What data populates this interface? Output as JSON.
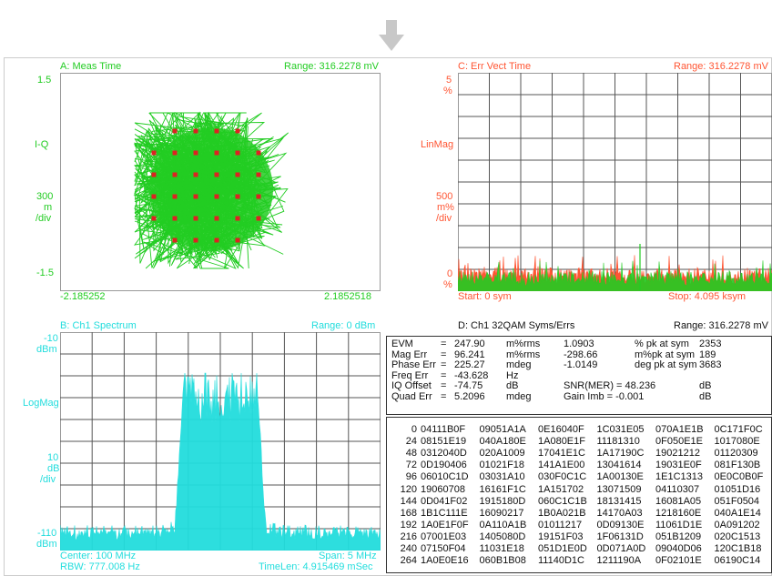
{
  "colors": {
    "green": "#22cc22",
    "red": "#ff5533",
    "cyan": "#22dddd",
    "trace_red": "#ff6a3a"
  },
  "panel_a": {
    "title": "A: Meas Time",
    "range": "Range: 316.2278 mV",
    "y_top": "1.5",
    "y_mid_label": "I-Q",
    "scale": [
      "300",
      "m",
      "/div"
    ],
    "y_bottom": "-1.5",
    "x_left": "-2.185252",
    "x_right": "2.1852518"
  },
  "panel_c": {
    "title": "C: Err Vect Time",
    "range": "Range: 316.2278 mV",
    "y_top": [
      "5",
      "%"
    ],
    "y_mid_label": "LinMag",
    "scale": [
      "500",
      "m%",
      "/div"
    ],
    "y_bottom": [
      "0",
      "%"
    ],
    "x_left": "Start: 0  sym",
    "x_right": "Stop: 4.095 ksym"
  },
  "panel_b": {
    "title": "B: Ch1 Spectrum",
    "range": "Range: 0 dBm",
    "y_top": [
      "-10",
      "dBm"
    ],
    "y_mid_label": "LogMag",
    "scale": [
      "10",
      "dB",
      "/div"
    ],
    "y_bottom": [
      "-110",
      "dBm"
    ],
    "footer_left_1": "Center: 100 MHz",
    "footer_left_2": "RBW: 777.008  Hz",
    "footer_right_1": "Span: 5 MHz",
    "footer_right_2": "TimeLen: 4.915469 mSec"
  },
  "panel_d": {
    "title": "D: Ch1 32QAM Syms/Errs",
    "range": "Range: 316.2278 mV",
    "measurements": [
      {
        "name": "EVM",
        "eq": "=",
        "val": "247.90",
        "unit": "m%rms",
        "v2": "1.0903",
        "u2": "% pk  at  sym",
        "v3": "2353"
      },
      {
        "name": "Mag Err",
        "eq": "=",
        "val": "96.241",
        "unit": "m%rms",
        "v2": "-298.66",
        "u2": "m%pk  at  sym",
        "v3": "189"
      },
      {
        "name": "Phase Err",
        "eq": "=",
        "val": "225.27",
        "unit": "mdeg",
        "v2": "-1.0149",
        "u2": "deg  pk  at  sym",
        "v3": "3683"
      },
      {
        "name": "Freq Err",
        "eq": "=",
        "val": "-43.628",
        "unit": "Hz",
        "v2": "",
        "u2": "",
        "v3": ""
      },
      {
        "name": "IQ Offset",
        "eq": "=",
        "val": "-74.75",
        "unit": "dB",
        "v2": "SNR(MER)  =  48.236",
        "u2": "",
        "v3": "dB"
      },
      {
        "name": "Quad Err",
        "eq": "=",
        "val": "5.2096",
        "unit": "mdeg",
        "v2": "Gain  Imb    =  -0.001",
        "u2": "",
        "v3": "dB"
      }
    ],
    "symbol_rows": [
      {
        "idx": "0",
        "words": [
          "04111B0F",
          "09051A1A",
          "0E16040F",
          "1C031E05",
          "070A1E1B",
          "0C171F0C"
        ]
      },
      {
        "idx": "24",
        "words": [
          "08151E19",
          "040A180E",
          "1A080E1F",
          "11181310",
          "0F050E1E",
          "1017080E"
        ]
      },
      {
        "idx": "48",
        "words": [
          "0312040D",
          "020A1009",
          "17041E1C",
          "1A17190C",
          "19021212",
          "01120309"
        ]
      },
      {
        "idx": "72",
        "words": [
          "0D190406",
          "01021F18",
          "141A1E00",
          "13041614",
          "19031E0F",
          "081F130B"
        ]
      },
      {
        "idx": "96",
        "words": [
          "06010C1D",
          "03031A10",
          "030F0C1C",
          "1A00130E",
          "1E1C1313",
          "0E0C0B0F"
        ]
      },
      {
        "idx": "120",
        "words": [
          "19060708",
          "16161F1C",
          "1A151702",
          "13071509",
          "04110307",
          "01051D16"
        ]
      },
      {
        "idx": "144",
        "words": [
          "0D041F02",
          "1915180D",
          "060C1C1B",
          "18131415",
          "16081A05",
          "051F0504"
        ]
      },
      {
        "idx": "168",
        "words": [
          "1B1C111E",
          "16090217",
          "1B0A021B",
          "14170A03",
          "1218160E",
          "040A1E14"
        ]
      },
      {
        "idx": "192",
        "words": [
          "1A0E1F0F",
          "0A110A1B",
          "01011217",
          "0D09130E",
          "11061D1E",
          "0A091202"
        ]
      },
      {
        "idx": "216",
        "words": [
          "07001E03",
          "1405080D",
          "19151F03",
          "1F06131D",
          "051B1209",
          "020C1513"
        ]
      },
      {
        "idx": "240",
        "words": [
          "07150F04",
          "11031E18",
          "051D1E0D",
          "0D071A0D",
          "09040D06",
          "120C1B18"
        ]
      },
      {
        "idx": "264",
        "words": [
          "1A0E0E16",
          "060B1B08",
          "11140D1C",
          "1211190A",
          "0F02101E",
          "06190C14"
        ]
      }
    ]
  }
}
